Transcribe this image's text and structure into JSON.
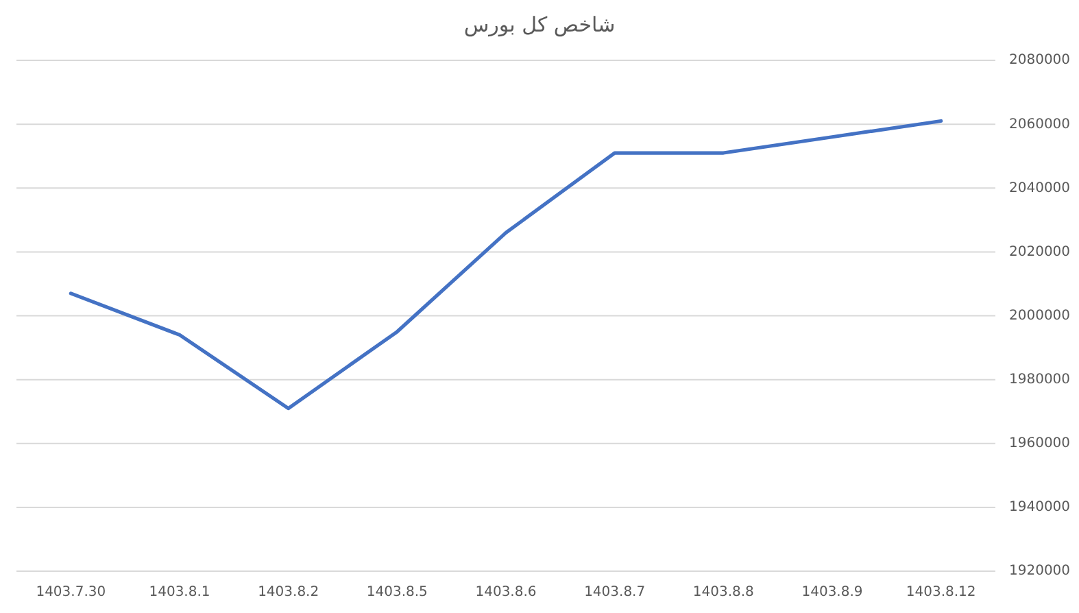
{
  "chart_data": {
    "type": "line",
    "title": "شاخص کل بورس",
    "categories": [
      "1403.7.30",
      "1403.8.1",
      "1403.8.2",
      "1403.8.5",
      "1403.8.6",
      "1403.8.7",
      "1403.8.8",
      "1403.8.9",
      "1403.8.12"
    ],
    "series": [
      {
        "color": "#4472c4",
        "values": [
          2007000,
          1994000,
          1971000,
          1995000,
          2026000,
          2051000,
          2051000,
          2056000,
          2061000
        ]
      }
    ],
    "ylim": [
      1920000,
      2080000
    ],
    "yticks": [
      1920000,
      1940000,
      1960000,
      1980000,
      2000000,
      2020000,
      2040000,
      2060000,
      2080000
    ],
    "grid": "y",
    "marker": "none",
    "line_style": "solid"
  }
}
